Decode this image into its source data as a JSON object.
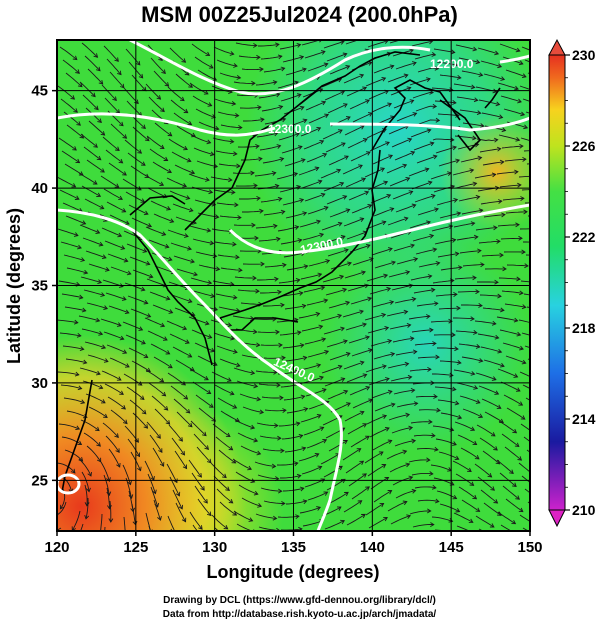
{
  "title": "MSM 00Z25Jul2024 (200.0hPa)",
  "xaxis": {
    "label": "Longitude (degrees)",
    "ticks": [
      "120",
      "125",
      "130",
      "135",
      "140",
      "145",
      "150"
    ]
  },
  "yaxis": {
    "label": "Latitude  (degrees)",
    "ticks": [
      "25",
      "30",
      "35",
      "40",
      "45"
    ]
  },
  "colorbar": {
    "ticks": [
      "230",
      "226",
      "222",
      "218",
      "214",
      "210"
    ]
  },
  "contours": [
    {
      "label": "12200.0"
    },
    {
      "label": "12300.0"
    },
    {
      "label": "12300.0"
    },
    {
      "label": "12400.0"
    }
  ],
  "credits": {
    "line1": "Drawing by DCL (https://www.gfd-dennou.org/library/dcl/)",
    "line2": "Data from http://database.rish.kyoto-u.ac.jp/arch/jmadata/"
  },
  "chart_data": {
    "type": "heatmap",
    "title": "MSM 00Z25Jul2024 (200.0hPa)",
    "xlabel": "Longitude (degrees)",
    "ylabel": "Latitude  (degrees)",
    "xlim": [
      120,
      150
    ],
    "ylim": [
      22.4,
      47.6
    ],
    "colorbar_range": [
      210,
      230
    ],
    "colorbar_ticks": [
      230,
      226,
      222,
      218,
      214,
      210
    ],
    "overlays": [
      "wind streamlines",
      "geopotential height contours",
      "coastlines"
    ],
    "contour_levels": [
      12200.0,
      12300.0,
      12400.0
    ],
    "grid": true
  }
}
